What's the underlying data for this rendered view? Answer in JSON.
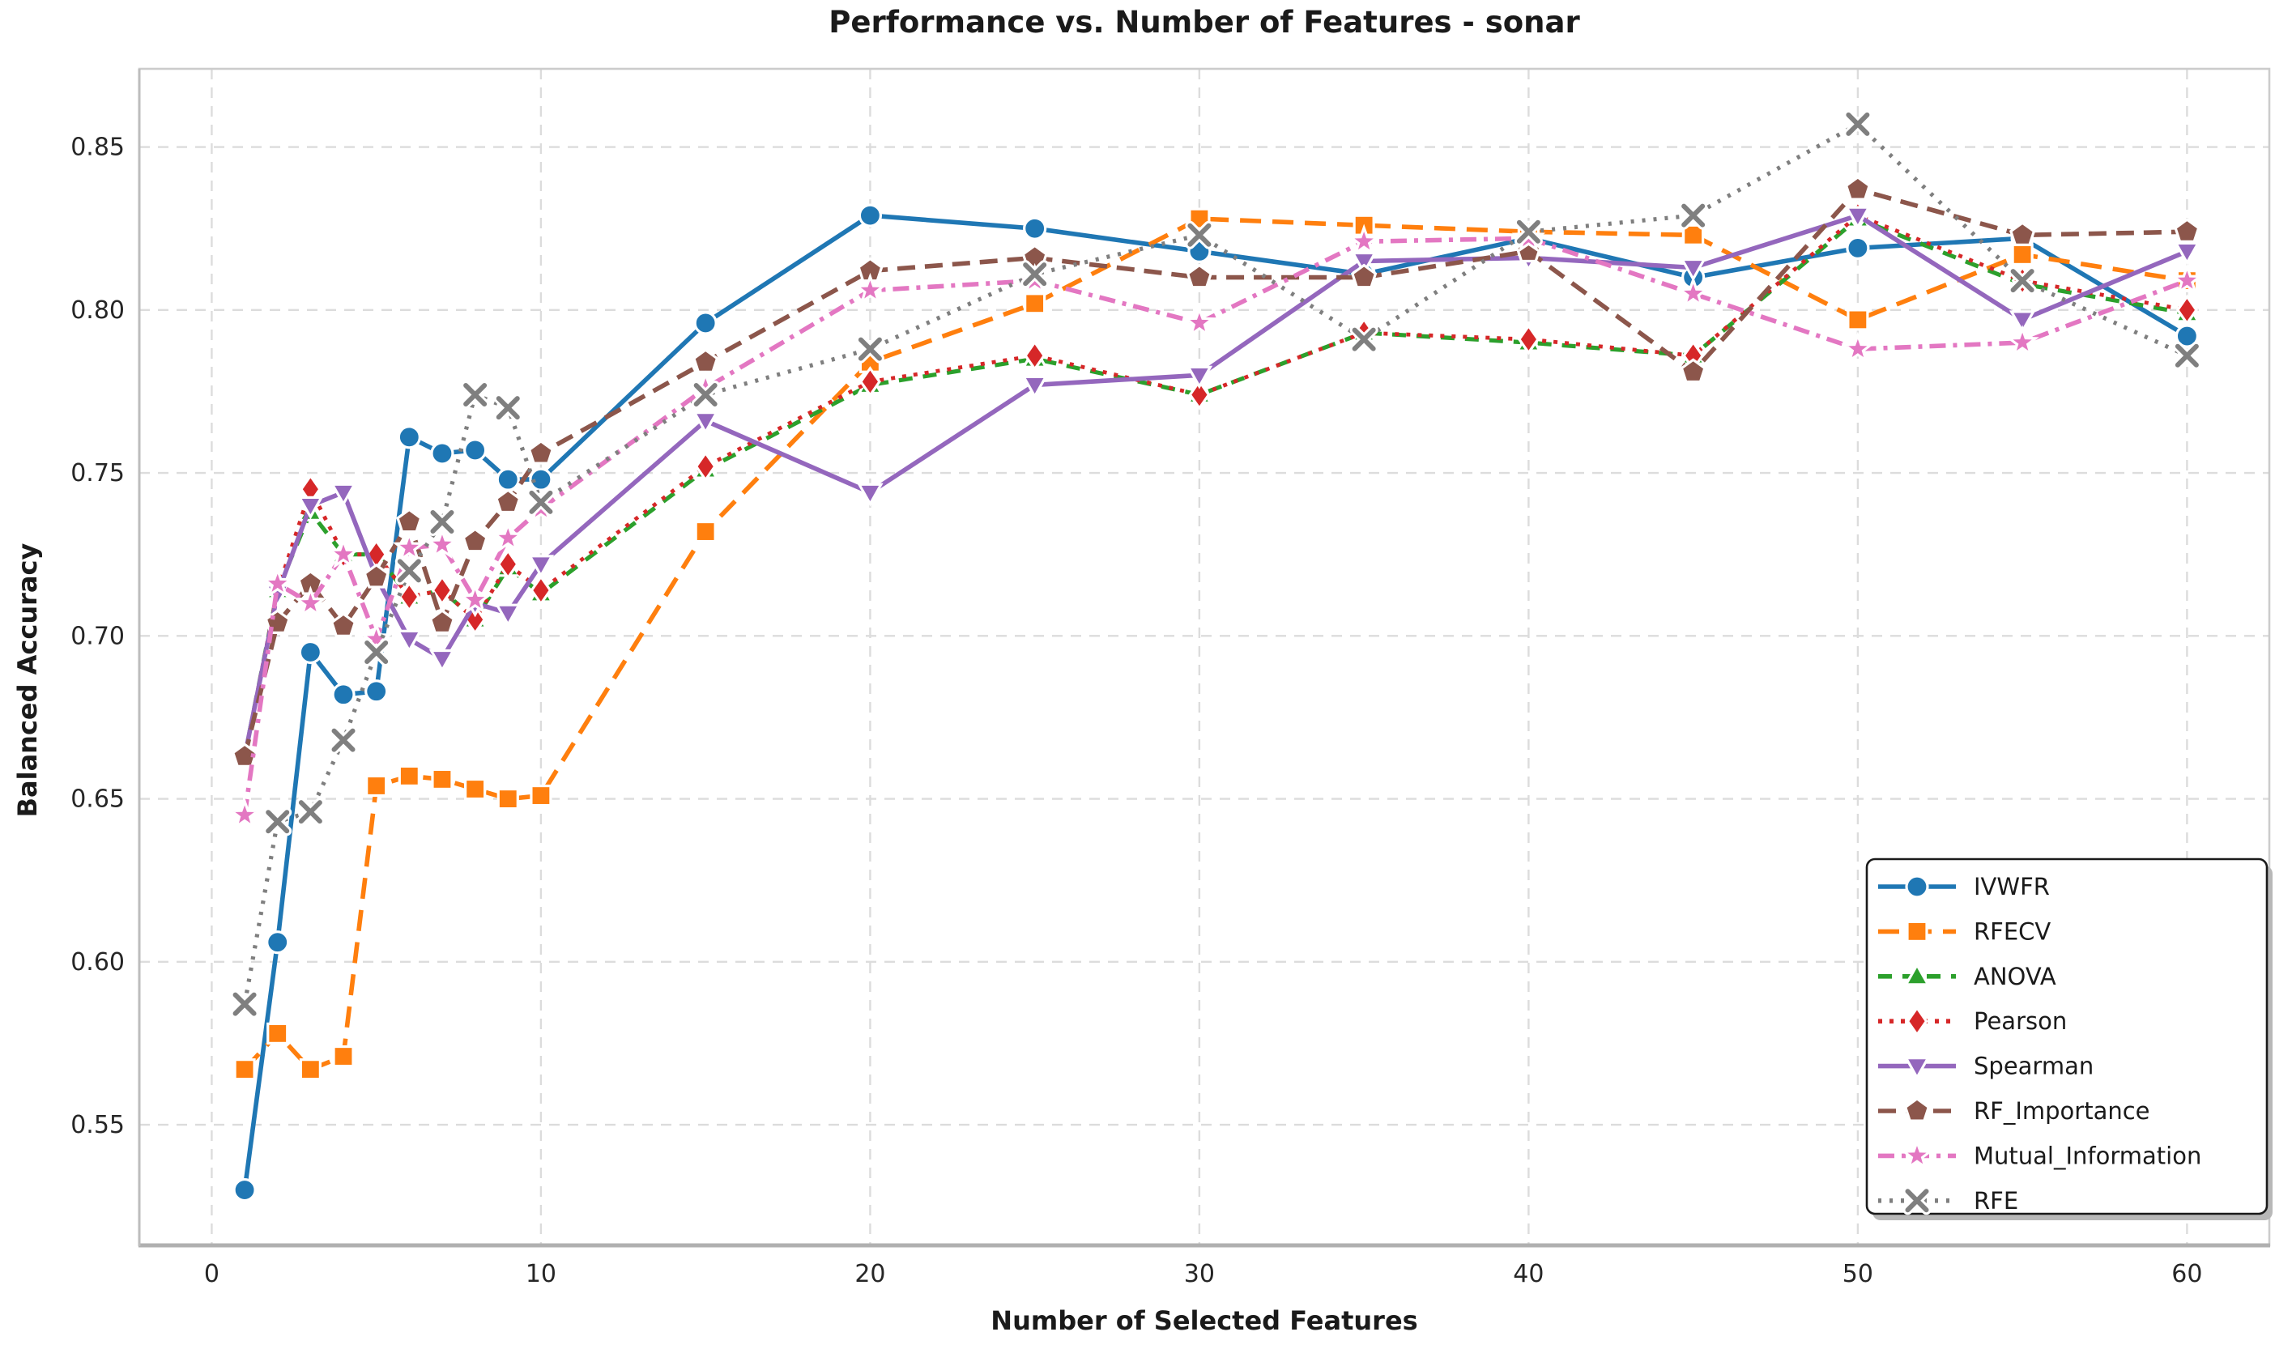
{
  "title": "Performance vs. Number of Features - sonar",
  "xlabel": "Number of Selected Features",
  "ylabel": "Balanced Accuracy",
  "chart_data": {
    "type": "line",
    "x": [
      1,
      2,
      3,
      4,
      5,
      6,
      7,
      8,
      9,
      10,
      15,
      20,
      25,
      30,
      35,
      40,
      45,
      50,
      55,
      60
    ],
    "xtick_labels": [
      "0",
      "10",
      "20",
      "30",
      "40",
      "50",
      "60"
    ],
    "xticks": [
      0,
      10,
      20,
      30,
      40,
      50,
      60
    ],
    "ytick_labels": [
      "0.55",
      "0.60",
      "0.65",
      "0.70",
      "0.75",
      "0.80",
      "0.85"
    ],
    "yticks": [
      0.55,
      0.6,
      0.65,
      0.7,
      0.75,
      0.8,
      0.85
    ],
    "xlim": [
      -2.2,
      62.5
    ],
    "ylim": [
      0.513,
      0.874
    ],
    "grid": true,
    "legend_position": "lower right",
    "series": [
      {
        "name": "IVWFR",
        "color": "#1f77b4",
        "marker": "circle",
        "dash": "solid",
        "values": [
          0.53,
          0.606,
          0.695,
          0.682,
          0.683,
          0.761,
          0.756,
          0.757,
          0.748,
          0.748,
          0.796,
          0.829,
          0.825,
          0.818,
          0.811,
          0.822,
          0.81,
          0.819,
          0.822,
          0.792
        ]
      },
      {
        "name": "RFECV",
        "color": "#ff7f0e",
        "marker": "square",
        "dash": "dashed",
        "values": [
          0.567,
          0.578,
          0.567,
          0.571,
          0.654,
          0.657,
          0.656,
          0.653,
          0.65,
          0.651,
          0.732,
          0.784,
          0.802,
          0.828,
          0.826,
          0.824,
          0.823,
          0.797,
          0.817,
          0.809
        ]
      },
      {
        "name": "ANOVA",
        "color": "#2ca02c",
        "marker": "triangle-up",
        "dash": "dashdot",
        "values": [
          0.663,
          0.714,
          0.738,
          0.725,
          0.725,
          0.712,
          0.714,
          0.705,
          0.721,
          0.713,
          0.751,
          0.777,
          0.785,
          0.774,
          0.793,
          0.79,
          0.786,
          0.828,
          0.808,
          0.799
        ]
      },
      {
        "name": "Pearson",
        "color": "#d62728",
        "marker": "diamond",
        "dash": "dotted",
        "values": [
          0.663,
          0.714,
          0.745,
          0.725,
          0.725,
          0.712,
          0.714,
          0.705,
          0.722,
          0.714,
          0.752,
          0.778,
          0.786,
          0.774,
          0.793,
          0.791,
          0.786,
          0.829,
          0.809,
          0.8
        ]
      },
      {
        "name": "Spearman",
        "color": "#9467bd",
        "marker": "triangle-down",
        "dash": "solid",
        "values": [
          0.663,
          0.713,
          0.74,
          0.744,
          0.718,
          0.699,
          0.693,
          0.71,
          0.707,
          0.722,
          0.766,
          0.744,
          0.777,
          0.78,
          0.815,
          0.816,
          0.813,
          0.829,
          0.797,
          0.818
        ]
      },
      {
        "name": "RF_Importance",
        "color": "#8c564b",
        "marker": "pentagon",
        "dash": "dashed",
        "values": [
          0.663,
          0.704,
          0.716,
          0.703,
          0.718,
          0.735,
          0.704,
          0.729,
          0.741,
          0.756,
          0.784,
          0.812,
          0.816,
          0.81,
          0.81,
          0.818,
          0.781,
          0.837,
          0.823,
          0.824
        ]
      },
      {
        "name": "Mutual_Information",
        "color": "#e377c2",
        "marker": "star",
        "dash": "dashdot",
        "values": [
          0.645,
          0.716,
          0.71,
          0.725,
          0.699,
          0.727,
          0.728,
          0.711,
          0.73,
          0.739,
          0.776,
          0.806,
          0.809,
          0.796,
          0.821,
          0.822,
          0.805,
          0.788,
          0.79,
          0.809
        ]
      },
      {
        "name": "RFE",
        "color": "#7f7f7f",
        "marker": "x",
        "dash": "dotted",
        "values": [
          0.587,
          0.643,
          0.646,
          0.668,
          0.695,
          0.72,
          0.735,
          0.774,
          0.77,
          0.741,
          0.774,
          0.788,
          0.811,
          0.823,
          0.791,
          0.824,
          0.829,
          0.857,
          0.809,
          0.786
        ]
      }
    ]
  }
}
